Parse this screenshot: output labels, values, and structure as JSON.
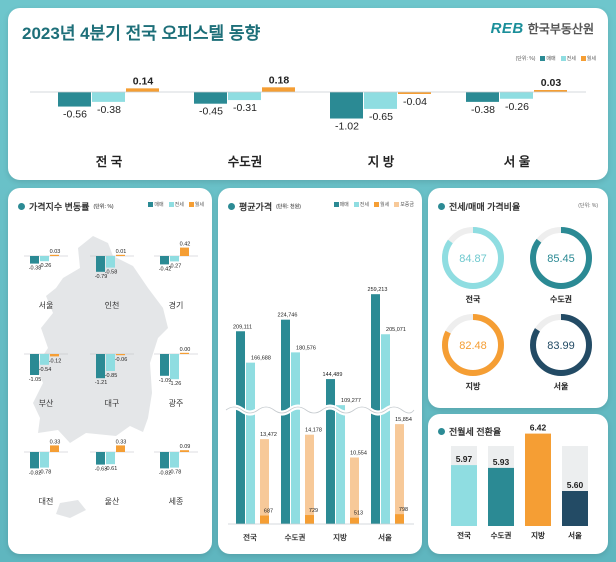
{
  "header": {
    "title": "2023년 4분기 전국 오피스텔 동향",
    "logo_mark": "REB",
    "logo_text": "한국부동산원"
  },
  "colors": {
    "sale": "#2b8a94",
    "jeonse": "#8fdde1",
    "wolse": "#f59e34",
    "jeonse_conv": "#c9ccd0",
    "navy": "#234b65"
  },
  "chart_data": [
    {
      "id": "top-change",
      "type": "bar",
      "unit": "(단위: %)",
      "legend": [
        "매매",
        "전세",
        "월세"
      ],
      "categories": [
        "전 국",
        "수도권",
        "지 방",
        "서 울"
      ],
      "series": [
        {
          "name": "매매",
          "values": [
            -0.56,
            -0.45,
            -1.02,
            -0.38
          ],
          "labels": [
            "-0.56",
            "-0.45",
            "-1.02",
            "-0.38"
          ]
        },
        {
          "name": "전세",
          "values": [
            -0.38,
            -0.31,
            -0.65,
            -0.26
          ],
          "labels": [
            "-0.38",
            "-0.31",
            "-0.65",
            "-0.26"
          ]
        },
        {
          "name": "월세",
          "values": [
            0.14,
            0.18,
            -0.04,
            0.03
          ],
          "labels": [
            "0.14",
            "0.18",
            "-0.04",
            "0.03"
          ]
        }
      ]
    },
    {
      "id": "regional-change",
      "type": "bar",
      "title": "가격지수 변동률",
      "unit": "(단위: %)",
      "legend": [
        "매매",
        "전세",
        "월세"
      ],
      "regions": [
        {
          "name": "서울",
          "values": [
            -0.38,
            -0.26,
            0.03
          ],
          "labels": [
            "-0.38",
            "-0.26",
            "0.03"
          ]
        },
        {
          "name": "인천",
          "values": [
            -0.79,
            -0.58,
            0.01
          ],
          "labels": [
            "-0.79",
            "-0.58",
            "0.01"
          ]
        },
        {
          "name": "경기",
          "values": [
            -0.42,
            -0.27,
            0.42
          ],
          "labels": [
            "-0.42",
            "-0.27",
            "0.42"
          ]
        },
        {
          "name": "부산",
          "values": [
            -1.05,
            -0.54,
            -0.12
          ],
          "labels": [
            "-1.05",
            "-0.54",
            "-0.12"
          ]
        },
        {
          "name": "대구",
          "values": [
            -1.21,
            -0.85,
            -0.06
          ],
          "labels": [
            "-1.21",
            "-0.85",
            "-0.06"
          ]
        },
        {
          "name": "광주",
          "values": [
            -1.09,
            -1.26,
            0.0
          ],
          "labels": [
            "-1.09",
            "-1.26",
            "0.00"
          ]
        },
        {
          "name": "대전",
          "values": [
            -0.82,
            -0.78,
            0.33
          ],
          "labels": [
            "-0.82",
            "-0.78",
            "0.33"
          ]
        },
        {
          "name": "울산",
          "values": [
            -0.63,
            -0.61,
            0.33
          ],
          "labels": [
            "-0.63",
            "-0.61",
            "0.33"
          ]
        },
        {
          "name": "세종",
          "values": [
            -0.82,
            -0.78,
            0.09
          ],
          "labels": [
            "-0.82",
            "-0.78",
            "0.09"
          ]
        }
      ]
    },
    {
      "id": "avg-price",
      "type": "bar",
      "title": "평균가격",
      "unit": "(단위: 천원)",
      "legend": [
        "매매",
        "전세",
        "월세",
        "보증금"
      ],
      "categories": [
        "전국",
        "수도권",
        "지방",
        "서울"
      ],
      "series": [
        {
          "name": "매매",
          "values": [
            209111,
            224746,
            144489,
            259213
          ],
          "labels": [
            "209,111",
            "224,746",
            "144,489",
            "259,213"
          ]
        },
        {
          "name": "전세",
          "values": [
            166688,
            180576,
            109277,
            205071
          ],
          "labels": [
            "166,688",
            "180,576",
            "109,277",
            "205,071"
          ]
        },
        {
          "name": "보증금",
          "values": [
            13472,
            14178,
            10554,
            15854
          ],
          "labels": [
            "13,472",
            "14,178",
            "10,554",
            "15,854"
          ]
        },
        {
          "name": "월세",
          "values": [
            687,
            729,
            513,
            798
          ],
          "labels": [
            "687",
            "729",
            "513",
            "798"
          ]
        }
      ]
    },
    {
      "id": "jeonse-ratio",
      "type": "pie",
      "title": "전세/매매 가격비율",
      "unit": "(단위: %)",
      "items": [
        {
          "name": "전국",
          "value": 84.87,
          "label": "84.87",
          "color": "#8fdde1"
        },
        {
          "name": "수도권",
          "value": 85.45,
          "label": "85.45",
          "color": "#2b8a94"
        },
        {
          "name": "지방",
          "value": 82.48,
          "label": "82.48",
          "color": "#f59e34"
        },
        {
          "name": "서울",
          "value": 83.99,
          "label": "83.99",
          "color": "#234b65"
        }
      ]
    },
    {
      "id": "conversion-rate",
      "type": "bar",
      "title": "전월세 전환율",
      "categories": [
        "전국",
        "수도권",
        "지방",
        "서울"
      ],
      "values": [
        5.97,
        5.93,
        6.42,
        5.6
      ],
      "labels": [
        "5.97",
        "5.93",
        "6.42",
        "5.60"
      ],
      "colors": [
        "#8fdde1",
        "#2b8a94",
        "#f59e34",
        "#234b65"
      ]
    }
  ]
}
